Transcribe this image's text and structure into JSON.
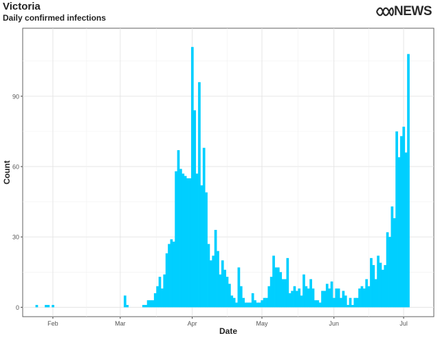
{
  "header": {
    "title": "Victoria",
    "subtitle": "Daily confirmed infections",
    "brand": "NEWS",
    "brand_logo_icon": "abc-waves-icon"
  },
  "chart_data": {
    "type": "bar",
    "title": "Victoria",
    "subtitle": "Daily confirmed infections",
    "xlabel": "Date",
    "ylabel": "Count",
    "ylim": [
      -4,
      119
    ],
    "yticks": [
      0,
      30,
      60,
      90
    ],
    "x_start": "2020-01-19",
    "x_end": "2020-07-14",
    "xticks": [
      {
        "label": "Feb",
        "date": "2020-02-01"
      },
      {
        "label": "Mar",
        "date": "2020-03-01"
      },
      {
        "label": "Apr",
        "date": "2020-04-01"
      },
      {
        "label": "May",
        "date": "2020-05-01"
      },
      {
        "label": "Jun",
        "date": "2020-06-01"
      },
      {
        "label": "Jul",
        "date": "2020-07-01"
      }
    ],
    "grid": true,
    "bar_color": "#00CFFF",
    "series": [
      {
        "start_date": "2020-01-25",
        "values": [
          1,
          0,
          0,
          0,
          1,
          1,
          0,
          1,
          0,
          0,
          0,
          0,
          0,
          0,
          0,
          0,
          0,
          0,
          0,
          0,
          0,
          0,
          0,
          0,
          0,
          0,
          0,
          0,
          0,
          0,
          0,
          0,
          0,
          0,
          0,
          0,
          0,
          0,
          5,
          1,
          0,
          0,
          0,
          0,
          0,
          0,
          1,
          1,
          3,
          3,
          3,
          6,
          9,
          13,
          8,
          14,
          23,
          27,
          29,
          28,
          58,
          67,
          59,
          57,
          56,
          55,
          55,
          111,
          84,
          57,
          96,
          52,
          68,
          49,
          27,
          20,
          22,
          33,
          24,
          14,
          20,
          16,
          13,
          10,
          5,
          4,
          2,
          17,
          9,
          4,
          2,
          2,
          2,
          6,
          3,
          2,
          2,
          3,
          4,
          4,
          9,
          13,
          22,
          17,
          17,
          15,
          12,
          12,
          21,
          6,
          7,
          9,
          7,
          8,
          5,
          14,
          9,
          8,
          12,
          8,
          3,
          3,
          2,
          7,
          7,
          10,
          8,
          11,
          4,
          8,
          8,
          4,
          7,
          5,
          1,
          4,
          1,
          4,
          4,
          8,
          9,
          8,
          12,
          9,
          21,
          18,
          12,
          22,
          19,
          16,
          18,
          32,
          30,
          43,
          38,
          75,
          64,
          73,
          77,
          66,
          108
        ]
      }
    ]
  }
}
